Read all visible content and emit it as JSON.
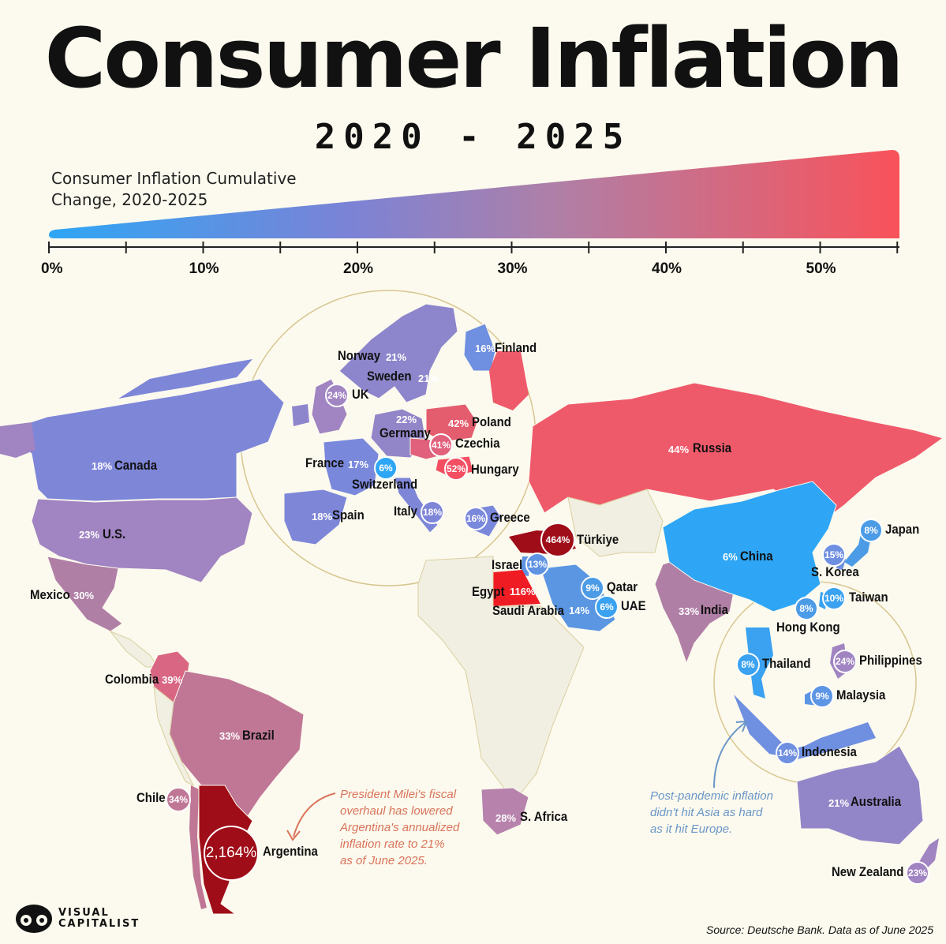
{
  "title": "Consumer Inflation",
  "subtitle": "2020 - 2025",
  "legend": {
    "title_line1": "Consumer Inflation Cumulative",
    "title_line2": "Change, 2020-2025",
    "ticks": [
      "0%",
      "10%",
      "20%",
      "30%",
      "40%",
      "50%"
    ],
    "color_low": "#2ea6f5",
    "color_high": "#f9525a"
  },
  "countries": [
    {
      "name": "Canada",
      "value": "18%"
    },
    {
      "name": "U.S.",
      "value": "23%"
    },
    {
      "name": "Mexico",
      "value": "30%"
    },
    {
      "name": "Colombia",
      "value": "39%"
    },
    {
      "name": "Brazil",
      "value": "33%"
    },
    {
      "name": "Chile",
      "value": "34%"
    },
    {
      "name": "Argentina",
      "value": "2,164%"
    },
    {
      "name": "Norway",
      "value": "21%"
    },
    {
      "name": "Sweden",
      "value": "21%"
    },
    {
      "name": "Finland",
      "value": "16%"
    },
    {
      "name": "UK",
      "value": "24%"
    },
    {
      "name": "Germany",
      "value": "22%"
    },
    {
      "name": "Poland",
      "value": "42%"
    },
    {
      "name": "Czechia",
      "value": "41%"
    },
    {
      "name": "Hungary",
      "value": "52%"
    },
    {
      "name": "France",
      "value": "17%"
    },
    {
      "name": "Switzerland",
      "value": "6%"
    },
    {
      "name": "Spain",
      "value": "18%"
    },
    {
      "name": "Italy",
      "value": "18%"
    },
    {
      "name": "Greece",
      "value": "16%"
    },
    {
      "name": "Russia",
      "value": "44%"
    },
    {
      "name": "Türkiye",
      "value": "464%"
    },
    {
      "name": "Israel",
      "value": "13%"
    },
    {
      "name": "Egypt",
      "value": "116%"
    },
    {
      "name": "Saudi Arabia",
      "value": "14%"
    },
    {
      "name": "Qatar",
      "value": "9%"
    },
    {
      "name": "UAE",
      "value": "6%"
    },
    {
      "name": "India",
      "value": "33%"
    },
    {
      "name": "China",
      "value": "6%"
    },
    {
      "name": "Japan",
      "value": "8%"
    },
    {
      "name": "S. Korea",
      "value": "15%"
    },
    {
      "name": "Taiwan",
      "value": "10%"
    },
    {
      "name": "Hong Kong",
      "value": "8%"
    },
    {
      "name": "Thailand",
      "value": "8%"
    },
    {
      "name": "Philippines",
      "value": "24%"
    },
    {
      "name": "Malaysia",
      "value": "9%"
    },
    {
      "name": "Indonesia",
      "value": "14%"
    },
    {
      "name": "S. Africa",
      "value": "28%"
    },
    {
      "name": "Australia",
      "value": "21%"
    },
    {
      "name": "New Zealand",
      "value": "23%"
    }
  ],
  "notes": {
    "argentina": [
      "President Milei's fiscal",
      "overhaul has lowered",
      "Argentina's annualized",
      "inflation rate to 21%",
      "as of June 2025."
    ],
    "asia": [
      "Post-pandemic inflation",
      "didn't hit Asia as hard",
      "as it hit Europe."
    ]
  },
  "colors": {
    "argentina_note": "#d9735a",
    "asia_note": "#6a96c8",
    "extreme": "#a3101a"
  },
  "source": "Source: Deutsche Bank. Data as of June 2025",
  "brand": {
    "line1": "VISUAL",
    "line2": "CAPITALIST"
  }
}
